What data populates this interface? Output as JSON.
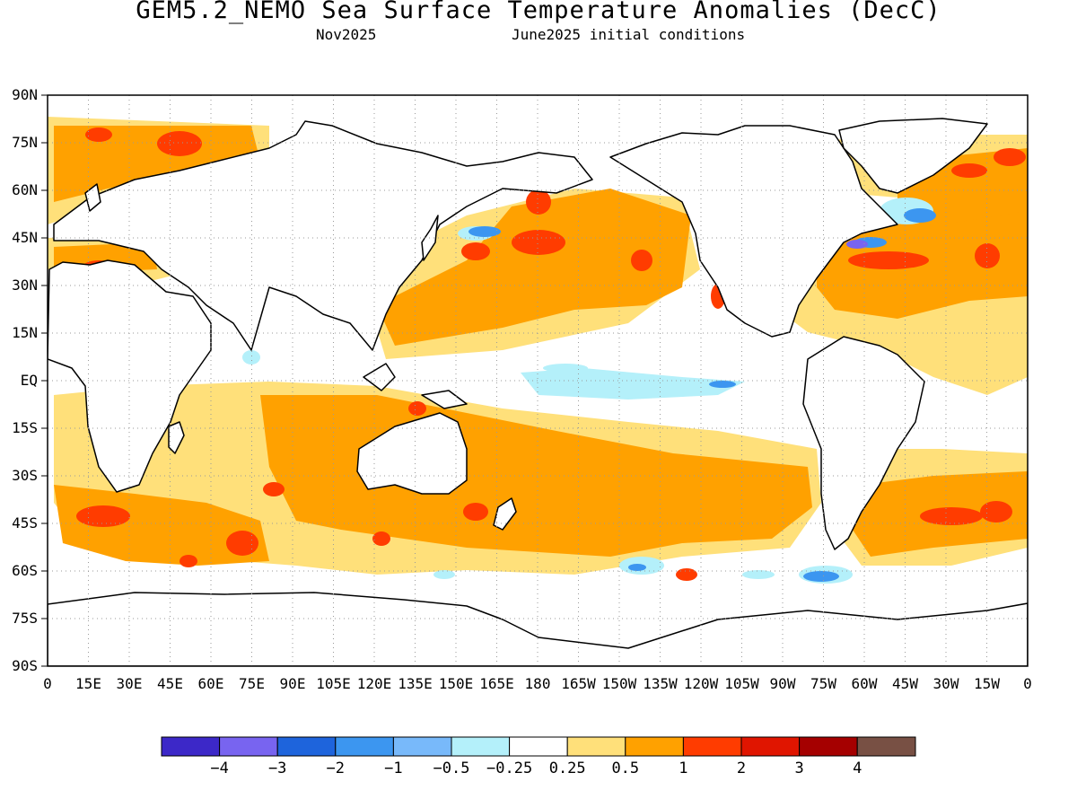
{
  "header": {
    "title": "GEM5.2_NEMO Sea Surface Temperature Anomalies (DecC)",
    "valid_month": "Nov2025",
    "init_conditions": "June2025 initial conditions"
  },
  "map": {
    "lat_labels": [
      "90N",
      "75N",
      "60N",
      "45N",
      "30N",
      "15N",
      "EQ",
      "15S",
      "30S",
      "45S",
      "60S",
      "75S",
      "90S"
    ],
    "lon_labels": [
      "0",
      "15E",
      "30E",
      "45E",
      "60E",
      "75E",
      "90E",
      "105E",
      "120E",
      "135E",
      "150E",
      "165E",
      "180",
      "165W",
      "150W",
      "135W",
      "120W",
      "105W",
      "90W",
      "75W",
      "60W",
      "45W",
      "30W",
      "15W",
      "0"
    ],
    "grid": "dotted",
    "fill_colors": {
      "weak_warm": "#ffe07a",
      "warm": "#ffa100",
      "strong_warm": "#ff3c00",
      "very_strong_warm": "#e01500",
      "weak_cool": "#b4f0fa",
      "cool": "#3c96f0",
      "strong_cool": "#7864f0",
      "coastline": "#000000"
    }
  },
  "colorbar": {
    "colors": [
      "#3c28c8",
      "#7864f0",
      "#1e64dc",
      "#3c96f0",
      "#78b9fa",
      "#b4f0fa",
      "#ffffff",
      "#ffe07a",
      "#ffa100",
      "#ff3c00",
      "#e01500",
      "#a50000",
      "#785044"
    ],
    "labels": [
      "−4",
      "−3",
      "−2",
      "−1",
      "−0.5",
      "−0.25",
      "0.25",
      "0.5",
      "1",
      "2",
      "3",
      "4"
    ]
  }
}
